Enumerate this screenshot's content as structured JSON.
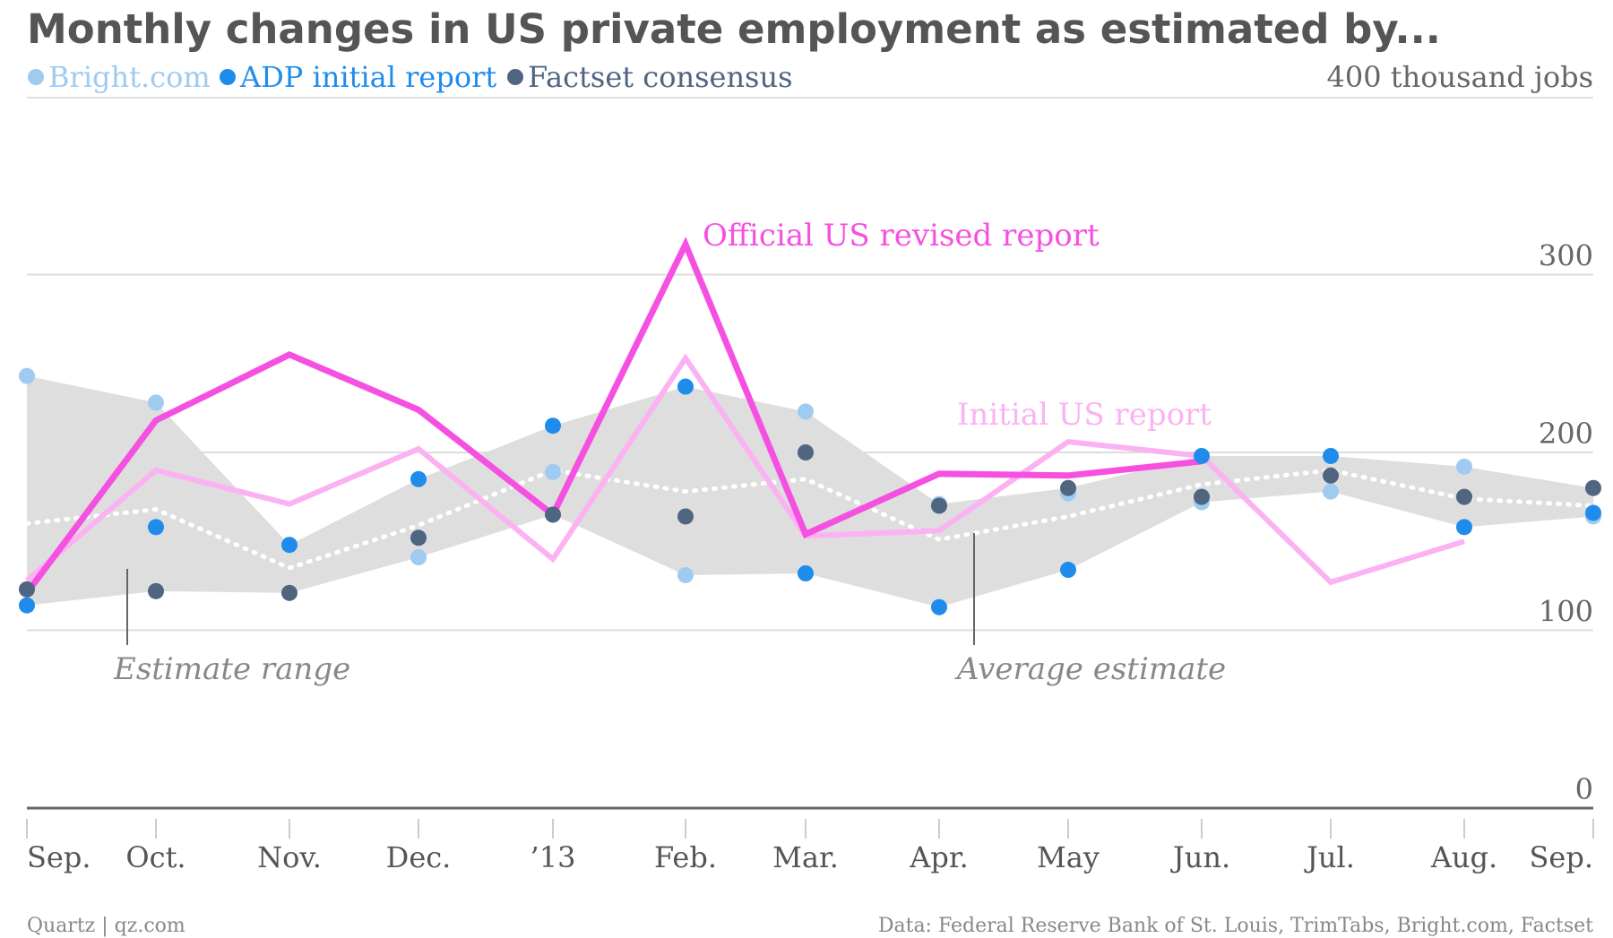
{
  "header": {
    "title": "Monthly changes in US private employment as estimated by...",
    "unit_label": "400 thousand jobs"
  },
  "legend": [
    {
      "label": "Bright.com",
      "color": "#9fcbf1"
    },
    {
      "label": "ADP initial report",
      "color": "#1f8ceb"
    },
    {
      "label": "Factset consensus",
      "color": "#4f6580"
    }
  ],
  "footer": {
    "left": "Quartz | qz.com",
    "right": "Data: Federal Reserve Bank of St. Louis, TrimTabs, Bright.com, Factset"
  },
  "chart_data": {
    "type": "line",
    "categories": [
      "Sep.",
      "Oct.",
      "Nov.",
      "Dec.",
      "’13",
      "Feb.",
      "Mar.",
      "Apr.",
      "May",
      "Jun.",
      "Jul.",
      "Aug.",
      "Sep."
    ],
    "ylim": [
      0,
      400
    ],
    "yticks": [
      {
        "value": 0,
        "label": "0"
      },
      {
        "value": 100,
        "label": "100"
      },
      {
        "value": 200,
        "label": "200"
      },
      {
        "value": 300,
        "label": "300"
      }
    ],
    "grid": true,
    "dot_series": [
      {
        "name": "Bright.com",
        "color": "#9fcbf1",
        "values": [
          243,
          228,
          null,
          141,
          189,
          131,
          223,
          171,
          177,
          172,
          178,
          192,
          164
        ]
      },
      {
        "name": "ADP initial report",
        "color": "#1f8ceb",
        "values": [
          114,
          158,
          148,
          185,
          215,
          237,
          132,
          113,
          134,
          198,
          198,
          158,
          166
        ]
      },
      {
        "name": "Factset consensus",
        "color": "#4f6580",
        "values": [
          123,
          122,
          121,
          152,
          165,
          164,
          200,
          170,
          180,
          175,
          187,
          175,
          180
        ]
      }
    ],
    "lines": [
      {
        "name": "Official US revised report",
        "color": "#f550e1",
        "width": 7,
        "values": [
          121,
          218,
          255,
          224,
          165,
          317,
          154,
          188,
          187,
          195,
          null,
          null,
          null
        ]
      },
      {
        "name": "Initial US report",
        "color": "#fbb2f2",
        "width": 6,
        "values": [
          128,
          190,
          171,
          202,
          140,
          253,
          153,
          156,
          206,
          198,
          127,
          150,
          null
        ]
      }
    ],
    "average_estimate": [
      160,
      168,
      135,
      159,
      190,
      178,
      185,
      151,
      164,
      182,
      190,
      174,
      170
    ],
    "range_low": [
      114,
      122,
      121,
      141,
      165,
      131,
      132,
      113,
      134,
      172,
      178,
      158,
      164
    ],
    "range_high": [
      243,
      228,
      148,
      185,
      215,
      237,
      223,
      171,
      180,
      198,
      198,
      192,
      180
    ],
    "annotations": {
      "official_label": "Official US revised report",
      "initial_label": "Initial US report",
      "range_label": "Estimate range",
      "average_label": "Average estimate"
    }
  }
}
